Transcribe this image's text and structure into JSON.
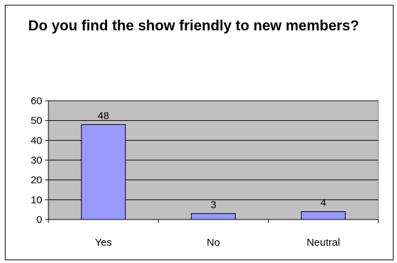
{
  "chart_data": {
    "type": "bar",
    "title": "Do you find the show friendly to new members?",
    "categories": [
      "Yes",
      "No",
      "Neutral"
    ],
    "values": [
      48,
      3,
      4
    ],
    "data_labels": [
      "48",
      "3",
      "4"
    ],
    "ylim": [
      0,
      60
    ],
    "yticks": [
      0,
      10,
      20,
      30,
      40,
      50,
      60
    ],
    "xlabel": "",
    "ylabel": "",
    "grid": true,
    "legend": "none",
    "colors": {
      "bar_fill": "#9999ff",
      "plot_background": "#c0c0c0",
      "gridline": "#000000",
      "axis": "#000000"
    }
  }
}
